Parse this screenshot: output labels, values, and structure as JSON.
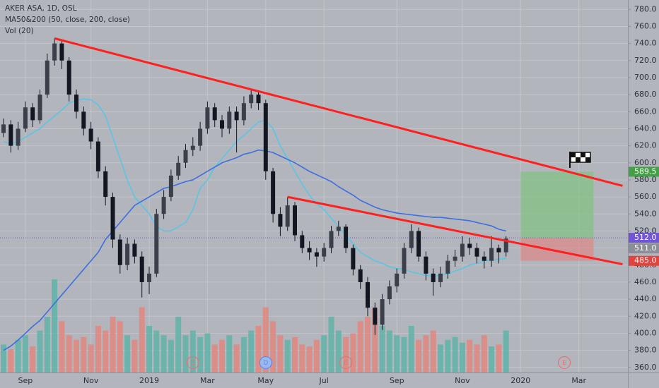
{
  "chart_data": {
    "type": "candlestick",
    "title": "AKER ASA, 1D, OSL",
    "indicators": [
      "MA50&200 (50, close, 200, close)",
      "Vol (20)"
    ],
    "categories": [
      null,
      null,
      null,
      "Sep",
      null,
      null,
      null,
      null,
      null,
      null,
      null,
      null,
      "Nov",
      null,
      null,
      null,
      null,
      null,
      null,
      null,
      "2019",
      null,
      null,
      null,
      null,
      null,
      null,
      null,
      "Mar",
      null,
      null,
      null,
      null,
      null,
      null,
      null,
      "May",
      null,
      null,
      null,
      null,
      null,
      null,
      null,
      "Jul",
      null,
      null,
      null,
      null,
      null,
      null,
      null,
      null,
      null,
      "Sep",
      null,
      null,
      null,
      null,
      null,
      null,
      null,
      null,
      "Nov",
      null,
      null,
      null,
      null,
      null,
      null,
      null,
      "2020",
      null,
      null,
      null,
      null,
      null,
      null,
      null,
      "Mar",
      null,
      null,
      null,
      null,
      null,
      null
    ],
    "open": [
      635,
      645,
      620,
      640,
      665,
      650,
      680,
      720,
      740,
      720,
      680,
      660,
      640,
      625,
      590,
      560,
      510,
      480,
      505,
      490,
      460,
      470,
      540,
      560,
      585,
      600,
      615,
      620,
      640,
      665,
      650,
      640,
      660,
      650,
      670,
      680,
      670,
      590,
      540,
      525,
      550,
      515,
      500,
      495,
      490,
      500,
      520,
      525,
      500,
      475,
      460,
      430,
      410,
      440,
      455,
      470,
      500,
      520,
      490,
      470,
      460,
      470,
      485,
      490,
      505,
      500,
      490,
      485,
      500,
      495,
      null,
      null,
      null,
      null,
      null,
      null,
      null,
      null,
      null,
      null,
      null,
      null,
      null,
      null,
      null,
      null
    ],
    "high": [
      652,
      650,
      648,
      672,
      670,
      686,
      728,
      746,
      744,
      724,
      686,
      666,
      648,
      630,
      596,
      565,
      516,
      512,
      510,
      496,
      478,
      546,
      568,
      592,
      608,
      622,
      630,
      648,
      672,
      670,
      656,
      666,
      666,
      678,
      686,
      684,
      674,
      594,
      548,
      560,
      554,
      520,
      508,
      500,
      506,
      526,
      532,
      528,
      504,
      480,
      466,
      436,
      446,
      462,
      476,
      506,
      528,
      524,
      496,
      476,
      478,
      492,
      498,
      514,
      512,
      506,
      496,
      514,
      504,
      514,
      null,
      null,
      null,
      null,
      null,
      null,
      null,
      null,
      null,
      null,
      null,
      null,
      null,
      null,
      null,
      null
    ],
    "low": [
      630,
      612,
      615,
      636,
      642,
      646,
      676,
      714,
      710,
      672,
      652,
      632,
      616,
      582,
      550,
      500,
      470,
      474,
      482,
      442,
      446,
      466,
      534,
      555,
      580,
      594,
      608,
      614,
      634,
      642,
      630,
      634,
      612,
      644,
      664,
      662,
      580,
      530,
      514,
      520,
      508,
      494,
      486,
      478,
      484,
      494,
      514,
      494,
      468,
      452,
      420,
      398,
      404,
      434,
      448,
      464,
      494,
      484,
      462,
      444,
      454,
      464,
      478,
      484,
      492,
      482,
      476,
      478,
      482,
      490,
      null,
      null,
      null,
      null,
      null,
      null,
      null,
      null,
      null,
      null,
      null,
      null,
      null,
      null,
      null,
      null
    ],
    "close": [
      645,
      620,
      640,
      665,
      650,
      680,
      720,
      740,
      720,
      680,
      660,
      640,
      625,
      590,
      560,
      510,
      480,
      505,
      490,
      460,
      470,
      540,
      560,
      585,
      600,
      615,
      620,
      640,
      665,
      650,
      640,
      660,
      650,
      670,
      680,
      670,
      590,
      540,
      525,
      550,
      515,
      500,
      495,
      490,
      500,
      520,
      525,
      500,
      475,
      460,
      430,
      410,
      440,
      455,
      470,
      500,
      520,
      490,
      470,
      460,
      470,
      485,
      490,
      505,
      500,
      490,
      485,
      500,
      495,
      511,
      null,
      null,
      null,
      null,
      null,
      null,
      null,
      null,
      null,
      null,
      null,
      null,
      null,
      null,
      null,
      null
    ],
    "volume": [
      30,
      25,
      35,
      40,
      28,
      45,
      60,
      100,
      55,
      40,
      35,
      38,
      30,
      50,
      45,
      60,
      55,
      40,
      35,
      70,
      50,
      45,
      40,
      35,
      60,
      40,
      45,
      38,
      42,
      30,
      35,
      40,
      30,
      38,
      45,
      50,
      70,
      55,
      40,
      35,
      38,
      30,
      28,
      35,
      40,
      60,
      45,
      38,
      42,
      55,
      60,
      70,
      50,
      45,
      40,
      38,
      50,
      35,
      40,
      45,
      30,
      35,
      38,
      32,
      35,
      30,
      40,
      28,
      30,
      45,
      null,
      null,
      null,
      null,
      null,
      null,
      null,
      null,
      null,
      null,
      null,
      null,
      null,
      null,
      null,
      null
    ],
    "volume_colors": {
      "up": "#5fb3a8",
      "down": "#e0877e"
    },
    "candle_color": "#131722",
    "lines": [
      {
        "color": "#5cc4e6",
        "values": [
          625,
          622,
          625,
          630,
          635,
          640,
          648,
          655,
          662,
          670,
          673,
          675,
          674,
          668,
          655,
          630,
          605,
          580,
          560,
          550,
          540,
          525,
          520,
          520,
          525,
          530,
          545,
          570,
          580,
          595,
          605,
          615,
          625,
          632,
          640,
          648,
          650,
          640,
          620,
          605,
          590,
          575,
          562,
          552,
          545,
          535,
          525,
          515,
          505,
          495,
          490,
          485,
          482,
          478,
          476,
          475,
          472,
          470,
          468,
          467,
          468,
          470,
          473,
          476,
          480,
          482,
          485,
          486,
          487,
          488,
          null,
          null,
          null,
          null,
          null,
          null,
          null,
          null,
          null,
          null,
          null,
          null,
          null,
          null,
          null,
          null
        ]
      },
      {
        "color": "#3d6ee0",
        "values": [
          380,
          385,
          392,
          400,
          408,
          415,
          425,
          435,
          445,
          455,
          465,
          475,
          485,
          495,
          510,
          520,
          530,
          540,
          550,
          555,
          560,
          565,
          570,
          572,
          575,
          578,
          580,
          585,
          590,
          595,
          600,
          603,
          606,
          610,
          612,
          615,
          614,
          612,
          608,
          604,
          600,
          595,
          590,
          586,
          582,
          578,
          572,
          567,
          562,
          556,
          552,
          548,
          545,
          543,
          541,
          540,
          539,
          538,
          537,
          536,
          536,
          535,
          534,
          533,
          532,
          530,
          528,
          526,
          522,
          520,
          null,
          null,
          null,
          null,
          null,
          null,
          null,
          null,
          null,
          null,
          null,
          null,
          null,
          null,
          null,
          null
        ]
      }
    ],
    "trendlines": [
      {
        "color": "#ff1f1f",
        "x": [
          7,
          85
        ],
        "y": [
          746,
          573
        ]
      },
      {
        "color": "#ff1f1f",
        "x": [
          39,
          85
        ],
        "y": [
          560,
          481
        ]
      }
    ],
    "position": {
      "x": [
        71,
        81
      ],
      "target": 589.5,
      "entry": 512,
      "stop": 485,
      "profit_color": "#7fc27f",
      "loss_color": "#dc8888"
    },
    "price_labels": [
      {
        "value": 589.5,
        "label": "589.5",
        "color": "#43a047"
      },
      {
        "value": 512,
        "label": "512.0",
        "color": "#7056d6"
      },
      {
        "value": 511,
        "label": "511.0",
        "color": "#8c8f97"
      },
      {
        "value": 485,
        "label": "485.0",
        "color": "#e0443e"
      }
    ],
    "events": {
      "labels": [
        "E",
        "D",
        "E",
        "E"
      ],
      "x": [
        26,
        36,
        47,
        77
      ],
      "colors": [
        "#e57373",
        "#5b8def",
        "#e57373",
        "#e57373"
      ]
    },
    "ylim": [
      354,
      791
    ],
    "y2lim": [
      0,
      400
    ],
    "yticks": [
      {
        "value": 360,
        "label": "360.0"
      },
      {
        "value": 380,
        "label": "380.0"
      },
      {
        "value": 400,
        "label": "400.0"
      },
      {
        "value": 420,
        "label": "420.0"
      },
      {
        "value": 440,
        "label": "440.0"
      },
      {
        "value": 460,
        "label": "460.0"
      },
      {
        "value": 480,
        "label": "480.0"
      },
      {
        "value": 500,
        "label": "500.0"
      },
      {
        "value": 520,
        "label": "520.0"
      },
      {
        "value": 540,
        "label": "540.0"
      },
      {
        "value": 560,
        "label": "560.0"
      },
      {
        "value": 580,
        "label": "580.0"
      },
      {
        "value": 600,
        "label": "600.0"
      },
      {
        "value": 620,
        "label": "620.0"
      },
      {
        "value": 640,
        "label": "640.0"
      },
      {
        "value": 660,
        "label": "660.0"
      },
      {
        "value": 680,
        "label": "680.0"
      },
      {
        "value": 700,
        "label": "700.0"
      },
      {
        "value": 720,
        "label": "720.0"
      },
      {
        "value": 740,
        "label": "740.0"
      },
      {
        "value": 760,
        "label": "760.0"
      },
      {
        "value": 780,
        "label": "780.0"
      }
    ],
    "grid": true
  }
}
